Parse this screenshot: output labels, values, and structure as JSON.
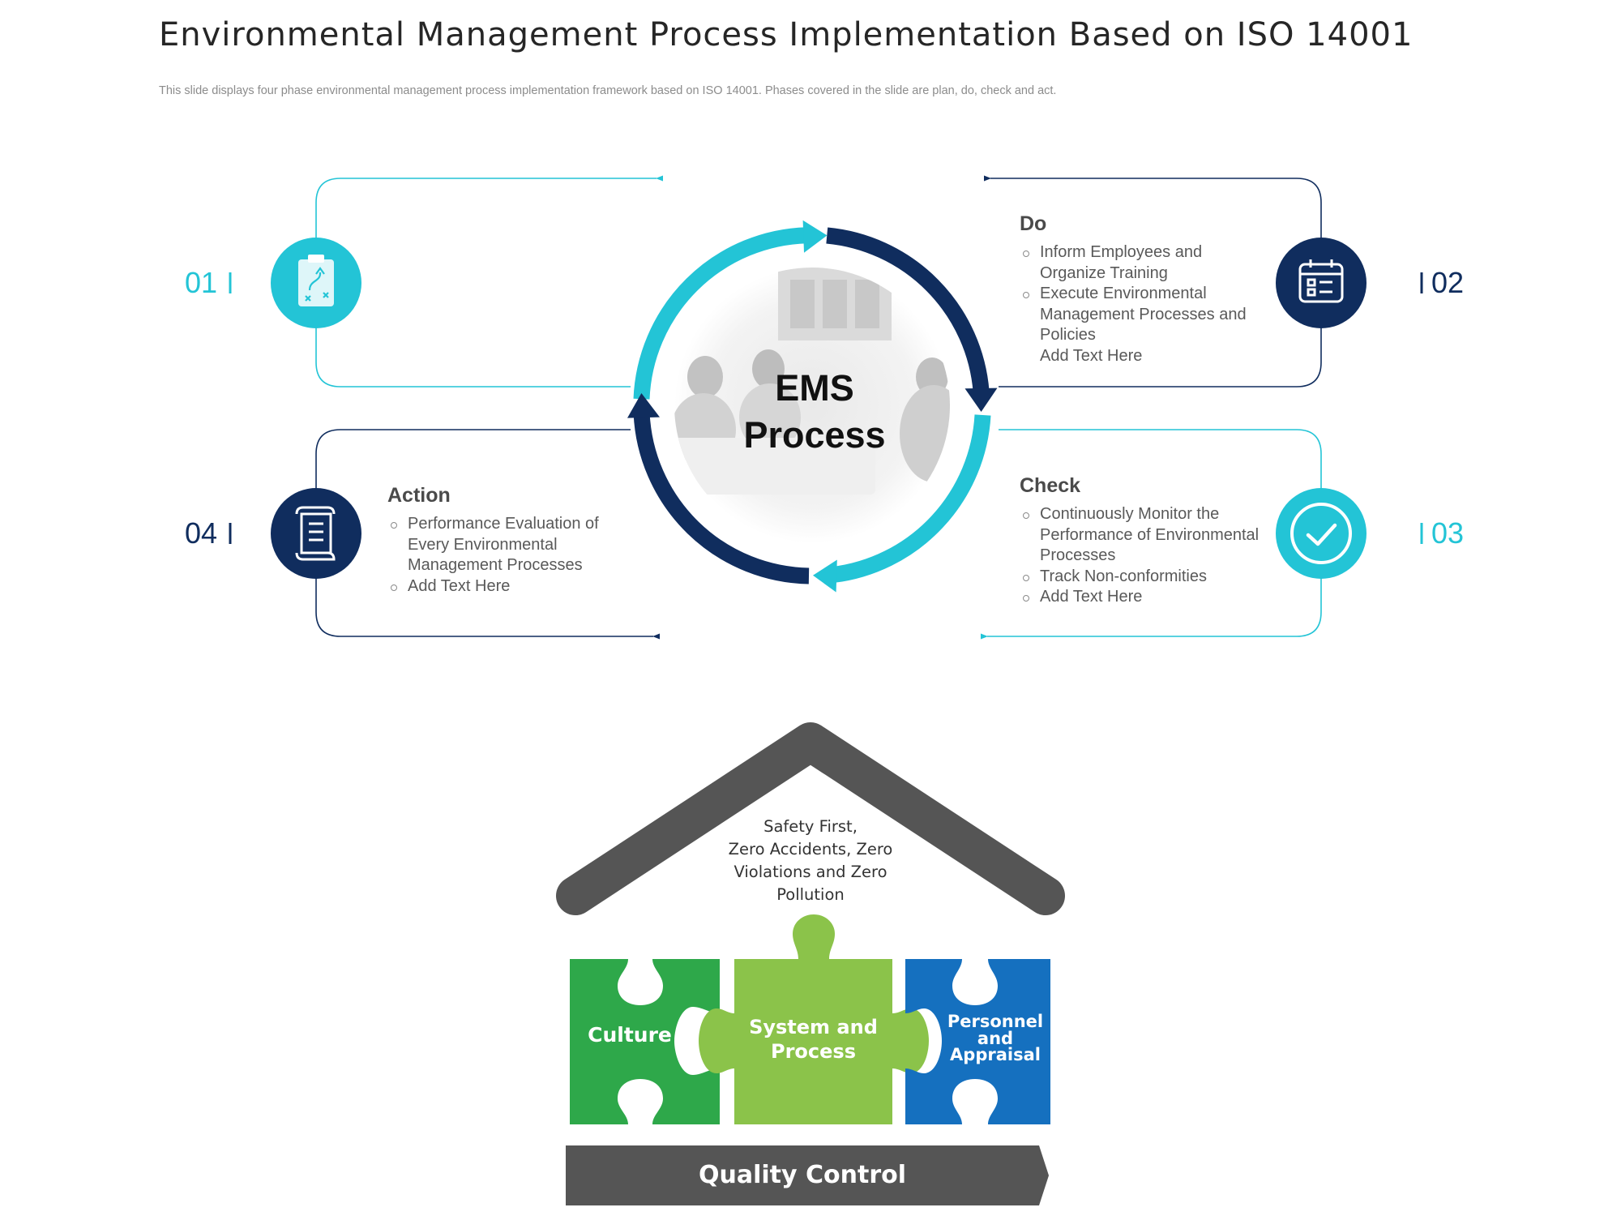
{
  "title": "Environmental Management Process Implementation Based on ISO 14001",
  "subtitle": "This slide displays four phase environmental management process implementation framework based on ISO 14001. Phases covered in the slide are plan, do, check and act.",
  "center": {
    "line1": "EMS",
    "line2": "Process"
  },
  "phases": {
    "p01": {
      "number": "01",
      "title": "",
      "items": []
    },
    "p02": {
      "number": "02",
      "title": "Do",
      "items": [
        "Inform Employees and Organize Training",
        "Execute Environmental Management Processes and Policies",
        "Add Text Here"
      ]
    },
    "p03": {
      "number": "03",
      "title": "Check",
      "items": [
        "Continuously Monitor the Performance of Environmental Processes",
        "Track Non-conformities",
        "Add Text Here"
      ]
    },
    "p04": {
      "number": "04",
      "title": "Action",
      "items": [
        "Performance Evaluation of Every Environmental Management Processes",
        "Add Text Here"
      ]
    }
  },
  "icons": {
    "p01": "clipboard-strategy-icon",
    "p02": "calendar-checklist-icon",
    "p03": "checkmark-icon",
    "p04": "document-scroll-icon"
  },
  "house": {
    "roof_text": [
      "Safety First,",
      "Zero Accidents, Zero",
      "Violations and Zero",
      "Pollution"
    ],
    "pieces": {
      "left": "Culture",
      "middle": [
        "System and",
        "Process"
      ],
      "right": [
        "Personnel",
        "and",
        "Appraisal"
      ]
    },
    "base": "Quality Control"
  },
  "colors": {
    "teal": "#23c4d6",
    "navy": "#102d5e",
    "green_dark": "#2ea84a",
    "green_light": "#8bc34a",
    "blue": "#1570bf",
    "gray": "#555555"
  }
}
